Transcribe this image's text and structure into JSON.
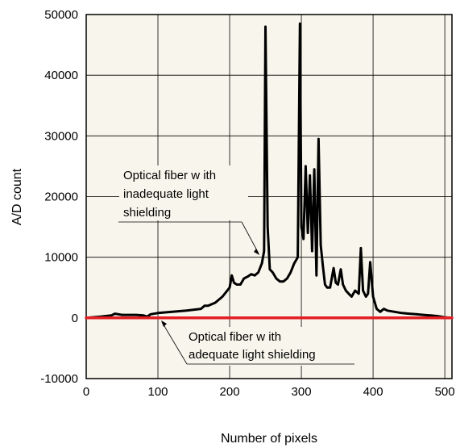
{
  "chart_data": {
    "type": "line",
    "title": "",
    "xlabel": "Number of pixels",
    "ylabel": "A/D count",
    "xlim": [
      0,
      510
    ],
    "ylim": [
      -10000,
      50000
    ],
    "x_ticks": [
      0,
      100,
      200,
      300,
      400,
      500
    ],
    "y_ticks": [
      -10000,
      0,
      10000,
      20000,
      30000,
      40000,
      50000
    ],
    "grid": true,
    "series": [
      {
        "color": "#000000",
        "x": [
          0,
          20,
          35,
          40,
          50,
          60,
          70,
          80,
          85,
          90,
          100,
          120,
          140,
          160,
          165,
          170,
          180,
          190,
          200,
          203,
          206,
          210,
          215,
          220,
          225,
          230,
          235,
          240,
          245,
          248,
          250,
          253,
          256,
          260,
          265,
          270,
          275,
          280,
          285,
          290,
          295,
          298,
          300,
          303,
          306,
          309,
          312,
          315,
          318,
          321,
          324,
          327,
          330,
          333,
          336,
          340,
          345,
          348,
          351,
          355,
          358,
          362,
          366,
          370,
          375,
          380,
          383,
          386,
          390,
          393,
          396,
          400,
          405,
          410,
          415,
          420,
          430,
          440,
          450,
          460,
          470,
          480,
          490,
          500,
          510
        ],
        "y": [
          0,
          200,
          400,
          700,
          500,
          500,
          500,
          400,
          200,
          600,
          800,
          1000,
          1200,
          1500,
          2000,
          2000,
          2500,
          3500,
          5000,
          7000,
          5800,
          5500,
          5500,
          6500,
          6800,
          7200,
          7000,
          7500,
          9000,
          11000,
          48000,
          15000,
          8000,
          7500,
          6500,
          6000,
          6000,
          6500,
          7500,
          9000,
          10000,
          48500,
          15000,
          13000,
          25000,
          14000,
          23500,
          11000,
          24500,
          7000,
          29500,
          12000,
          8500,
          5500,
          5000,
          5000,
          8200,
          5800,
          5500,
          8000,
          5500,
          4500,
          4000,
          3500,
          4500,
          4000,
          11500,
          4500,
          3500,
          4000,
          9200,
          3500,
          1500,
          1000,
          1500,
          1200,
          1000,
          800,
          700,
          600,
          500,
          400,
          300,
          100,
          0
        ]
      },
      {
        "color": "#e31e24",
        "x": [
          0,
          510
        ],
        "y": [
          0,
          0
        ]
      }
    ],
    "annotations": [
      {
        "lines": [
          "Optical fiber w ith",
          "inadequate light",
          "shielding"
        ]
      },
      {
        "lines": [
          "Optical fiber w ith",
          "adequate light shielding"
        ]
      }
    ]
  }
}
